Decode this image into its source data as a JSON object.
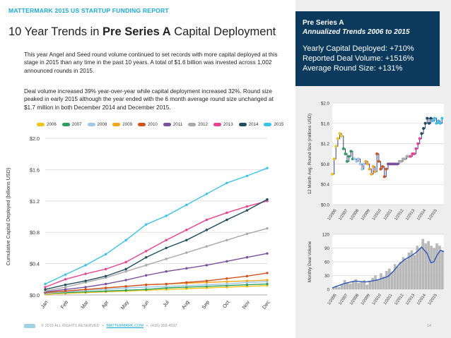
{
  "header": {
    "report_label": "MATTERMARK 2015 US STARTUP FUNDING REPORT",
    "title_prefix": "10 Year Trends in ",
    "title_bold": "Pre Series A",
    "title_suffix": " Capital Deployment"
  },
  "paragraphs": {
    "p1": "This year Angel and Seed round volume continued to set records with more capital deployed at this stage in 2015 than any time in the past 10 years. A total of $1.6 billion was invested across 1,002 announced rounds in 2015.",
    "p2": "Deal volume increased 39% year-over-year while capital deployment increased 32%. Round size peaked in early 2015 although the year ended with the 6 month average round size unchanged at $1.7 million in both December 2014 and December 2015."
  },
  "highlight": {
    "title": "Pre Series A",
    "subtitle": "Annualized Trends 2006 to 2015",
    "stats": [
      "Yearly Capital Deployed: +710%",
      "Reported Deal Volume: +1516%",
      "Average Round Size: +131%"
    ]
  },
  "footer": {
    "copyright": "© 2015 ALL RIGHTS RESERVED",
    "separator": "•",
    "link": "MATTERMARK.COM",
    "phone": "(415) 368-4597",
    "page_number": "14"
  },
  "colors": {
    "accent": "#1aa9d6",
    "panel_bg": "#eeeeee",
    "highlight_bg": "#0b3a5c",
    "dot_line": "#3a3f8f",
    "bar_gray": "#b8b8b8",
    "avg_line": "#2956b8"
  },
  "chart_data": [
    {
      "id": "cumulative",
      "type": "line",
      "title": "",
      "xlabel": "",
      "ylabel": "Cumulative Capital Deployed (billions USD)",
      "categories": [
        "Jan",
        "Feb",
        "Mar",
        "Apr",
        "May",
        "Jun",
        "Jul",
        "Aug",
        "Sep",
        "Oct",
        "Nov",
        "Dec"
      ],
      "ylim": [
        0,
        2.0
      ],
      "yticks": [
        "$0.0",
        "$0.4",
        "$0.8",
        "$1.2",
        "$1.6",
        "$2.0"
      ],
      "ytick_values": [
        0,
        0.4,
        0.8,
        1.2,
        1.6,
        2.0
      ],
      "series": [
        {
          "name": "2006",
          "color": "#f0c419",
          "values": [
            0.01,
            0.02,
            0.03,
            0.04,
            0.05,
            0.06,
            0.07,
            0.08,
            0.09,
            0.1,
            0.11,
            0.12
          ]
        },
        {
          "name": "2007",
          "color": "#2ca05a",
          "values": [
            0.02,
            0.03,
            0.04,
            0.05,
            0.06,
            0.07,
            0.09,
            0.1,
            0.11,
            0.12,
            0.13,
            0.14
          ]
        },
        {
          "name": "2008",
          "color": "#9ec8e8",
          "values": [
            0.02,
            0.04,
            0.06,
            0.07,
            0.09,
            0.1,
            0.11,
            0.12,
            0.13,
            0.14,
            0.16,
            0.17
          ]
        },
        {
          "name": "2009",
          "color": "#f5a623",
          "values": [
            0.03,
            0.05,
            0.07,
            0.09,
            0.11,
            0.13,
            0.14,
            0.15,
            0.16,
            0.17,
            0.18,
            0.19
          ]
        },
        {
          "name": "2010",
          "color": "#d2521e",
          "values": [
            0.03,
            0.05,
            0.07,
            0.09,
            0.11,
            0.13,
            0.14,
            0.16,
            0.18,
            0.21,
            0.24,
            0.28
          ]
        },
        {
          "name": "2011",
          "color": "#7b4f9d",
          "values": [
            0.04,
            0.07,
            0.1,
            0.14,
            0.19,
            0.25,
            0.3,
            0.34,
            0.38,
            0.43,
            0.48,
            0.53
          ]
        },
        {
          "name": "2012",
          "color": "#a9a9a9",
          "values": [
            0.05,
            0.1,
            0.16,
            0.22,
            0.3,
            0.38,
            0.46,
            0.54,
            0.62,
            0.7,
            0.78,
            0.85
          ]
        },
        {
          "name": "2013",
          "color": "#e8438f",
          "values": [
            0.1,
            0.2,
            0.27,
            0.33,
            0.42,
            0.56,
            0.7,
            0.83,
            0.96,
            1.05,
            1.13,
            1.2
          ]
        },
        {
          "name": "2014",
          "color": "#1f4e5f",
          "values": [
            0.07,
            0.13,
            0.18,
            0.24,
            0.33,
            0.48,
            0.6,
            0.7,
            0.83,
            0.96,
            1.08,
            1.22
          ]
        },
        {
          "name": "2015",
          "color": "#38c3e8",
          "values": [
            0.14,
            0.26,
            0.38,
            0.52,
            0.7,
            0.9,
            1.01,
            1.15,
            1.29,
            1.43,
            1.52,
            1.62
          ]
        }
      ]
    },
    {
      "id": "avg-round-size",
      "type": "line",
      "ylabel": "12 Month Avg. Round Size (millions USD)",
      "ylim": [
        0,
        2.0
      ],
      "yticks": [
        "$0.0",
        "$0.4",
        "$0.8",
        "$1.2",
        "$1.6",
        "$2.0"
      ],
      "ytick_values": [
        0,
        0.4,
        0.8,
        1.2,
        1.6,
        2.0
      ],
      "xticks": [
        "1/2006",
        "1/2007",
        "1/2008",
        "1/2009",
        "1/2010",
        "1/2011",
        "1/2012",
        "1/2013",
        "1/2014",
        "1/2015"
      ],
      "xrange": [
        2006.0,
        2016.0
      ],
      "segments": [
        {
          "color": "#f0c419",
          "x": [
            2006.0,
            2006.17,
            2006.33,
            2006.5,
            2006.67,
            2006.83
          ],
          "y": [
            0.6,
            0.9,
            1.15,
            1.3,
            1.4,
            1.35
          ]
        },
        {
          "color": "#2ca05a",
          "x": [
            2007.0,
            2007.17,
            2007.33,
            2007.5,
            2007.67,
            2007.83
          ],
          "y": [
            1.1,
            1.0,
            0.85,
            0.95,
            1.05,
            0.9
          ]
        },
        {
          "color": "#9ec8e8",
          "x": [
            2008.0,
            2008.17,
            2008.33,
            2008.5,
            2008.67,
            2008.83
          ],
          "y": [
            0.9,
            0.85,
            0.9,
            0.8,
            0.7,
            0.8
          ]
        },
        {
          "color": "#f5a623",
          "x": [
            2009.0,
            2009.17,
            2009.33,
            2009.5,
            2009.67,
            2009.83
          ],
          "y": [
            0.85,
            0.8,
            0.7,
            0.6,
            0.75,
            0.65
          ]
        },
        {
          "color": "#d2521e",
          "x": [
            2010.0,
            2010.17,
            2010.33,
            2010.5,
            2010.67,
            2010.83
          ],
          "y": [
            1.0,
            0.85,
            0.7,
            0.75,
            0.55,
            0.7
          ]
        },
        {
          "color": "#7b4f9d",
          "x": [
            2011.0,
            2011.17,
            2011.33,
            2011.5,
            2011.67,
            2011.83
          ],
          "y": [
            0.8,
            0.8,
            0.8,
            0.8,
            0.8,
            0.8
          ]
        },
        {
          "color": "#a9a9a9",
          "x": [
            2012.0,
            2012.17,
            2012.33,
            2012.5,
            2012.67,
            2012.83
          ],
          "y": [
            0.85,
            0.85,
            0.9,
            0.9,
            0.95,
            0.95
          ]
        },
        {
          "color": "#e8438f",
          "x": [
            2013.0,
            2013.17,
            2013.33,
            2013.5,
            2013.67,
            2013.83
          ],
          "y": [
            0.95,
            1.0,
            1.0,
            1.1,
            1.2,
            1.3
          ]
        },
        {
          "color": "#1f4e5f",
          "x": [
            2014.0,
            2014.17,
            2014.33,
            2014.5,
            2014.67,
            2014.83
          ],
          "y": [
            1.4,
            1.5,
            1.6,
            1.7,
            1.6,
            1.7
          ]
        },
        {
          "color": "#38c3e8",
          "x": [
            2015.0,
            2015.17,
            2015.33,
            2015.5,
            2015.67,
            2015.83
          ],
          "y": [
            1.65,
            1.7,
            1.6,
            1.65,
            1.6,
            1.7
          ]
        }
      ]
    },
    {
      "id": "deal-volume",
      "type": "bar",
      "ylabel": "Monthly Deal Volume",
      "ylim": [
        0,
        120
      ],
      "yticks": [
        "0",
        "30",
        "60",
        "90",
        "120"
      ],
      "ytick_values": [
        0,
        30,
        60,
        90,
        120
      ],
      "xticks": [
        "1/2006",
        "1/2007",
        "1/2008",
        "1/2009",
        "1/2010",
        "1/2011",
        "1/2012",
        "1/2013",
        "1/2014",
        "1/2015"
      ],
      "xrange": [
        2006.0,
        2016.0
      ],
      "bar_x": [
        2006.0,
        2006.25,
        2006.5,
        2006.75,
        2007.0,
        2007.25,
        2007.5,
        2007.75,
        2008.0,
        2008.25,
        2008.5,
        2008.75,
        2009.0,
        2009.25,
        2009.5,
        2009.75,
        2010.0,
        2010.25,
        2010.5,
        2010.75,
        2011.0,
        2011.25,
        2011.5,
        2011.75,
        2012.0,
        2012.25,
        2012.5,
        2012.75,
        2013.0,
        2013.25,
        2013.5,
        2013.75,
        2014.0,
        2014.25,
        2014.5,
        2014.75,
        2015.0,
        2015.25,
        2015.5,
        2015.75
      ],
      "bar_values": [
        3,
        8,
        5,
        10,
        20,
        15,
        12,
        18,
        22,
        14,
        16,
        20,
        10,
        18,
        25,
        30,
        22,
        35,
        28,
        40,
        45,
        38,
        55,
        50,
        60,
        70,
        65,
        80,
        85,
        75,
        95,
        90,
        110,
        100,
        105,
        95,
        90,
        100,
        95,
        85
      ],
      "avg_x": [
        2006.0,
        2007.0,
        2008.0,
        2009.0,
        2010.0,
        2011.0,
        2011.5,
        2012.0,
        2012.5,
        2013.0,
        2013.5,
        2014.0,
        2014.5,
        2014.83,
        2015.1,
        2015.4,
        2015.7,
        2016.0
      ],
      "avg_values": [
        3,
        12,
        18,
        16,
        20,
        28,
        40,
        55,
        65,
        72,
        80,
        92,
        78,
        58,
        60,
        75,
        85,
        82
      ]
    }
  ]
}
